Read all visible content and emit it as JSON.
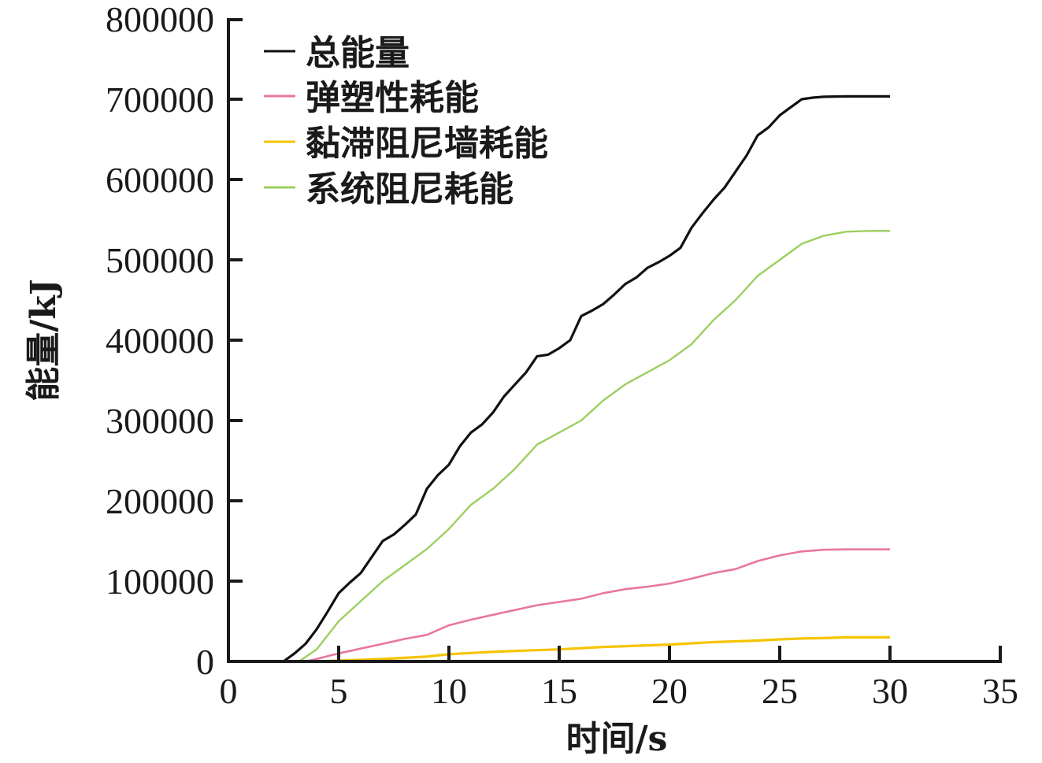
{
  "chart_data": {
    "type": "line",
    "title": "",
    "xlabel": "时间/s",
    "ylabel": "能量/kJ",
    "xlim": [
      0,
      35
    ],
    "ylim": [
      0,
      800000
    ],
    "xticks": [
      0,
      5,
      10,
      15,
      20,
      25,
      30,
      35
    ],
    "yticks": [
      0,
      100000,
      200000,
      300000,
      400000,
      500000,
      600000,
      700000,
      800000
    ],
    "grid": false,
    "legend_position": "upper-left",
    "series": [
      {
        "name": "总能量",
        "color": "#111111",
        "width": 3.2,
        "x": [
          2.5,
          3,
          3.5,
          4,
          4.5,
          5,
          5.5,
          6,
          6.5,
          7,
          7.5,
          8,
          8.5,
          9,
          9.5,
          10,
          10.5,
          11,
          11.5,
          12,
          12.5,
          13,
          13.5,
          14,
          14.5,
          15,
          15.5,
          16,
          16.5,
          17,
          17.5,
          18,
          18.5,
          19,
          19.5,
          20,
          20.5,
          21,
          21.5,
          22,
          22.5,
          23,
          23.5,
          24,
          24.5,
          25,
          25.5,
          26,
          26.5,
          27,
          28,
          29,
          30
        ],
        "values": [
          0,
          10000,
          22000,
          40000,
          62000,
          85000,
          98000,
          110000,
          130000,
          150000,
          158000,
          170000,
          183000,
          215000,
          232000,
          245000,
          268000,
          285000,
          295000,
          310000,
          330000,
          345000,
          360000,
          380000,
          382000,
          390000,
          400000,
          430000,
          437000,
          445000,
          457000,
          470000,
          478000,
          490000,
          497000,
          505000,
          515000,
          540000,
          558000,
          575000,
          590000,
          610000,
          630000,
          655000,
          665000,
          680000,
          690000,
          700000,
          702000,
          703000,
          703500,
          703500,
          703500
        ]
      },
      {
        "name": "弹塑性耗能",
        "color": "#e8779e",
        "width": 2.6,
        "x": [
          3.5,
          4,
          5,
          6,
          7,
          8,
          9,
          10,
          11,
          12,
          13,
          14,
          15,
          16,
          17,
          18,
          19,
          20,
          21,
          22,
          23,
          24,
          25,
          26,
          27,
          28,
          30
        ],
        "values": [
          0,
          3000,
          10000,
          16000,
          22000,
          28000,
          33000,
          45000,
          52000,
          58000,
          64000,
          70000,
          74000,
          78000,
          85000,
          90000,
          93000,
          97000,
          103000,
          110000,
          115000,
          125000,
          132000,
          137000,
          139000,
          139500,
          139500
        ]
      },
      {
        "name": "黏滞阻尼墙耗能",
        "color": "#f5c400",
        "width": 3.2,
        "x": [
          4,
          5,
          6,
          7,
          8,
          9,
          10,
          11,
          12,
          13,
          14,
          15,
          16,
          17,
          18,
          19,
          20,
          21,
          22,
          23,
          24,
          25,
          26,
          27,
          28,
          29,
          30
        ],
        "values": [
          0,
          1000,
          2000,
          3000,
          4500,
          6000,
          9000,
          10500,
          12000,
          13000,
          14000,
          15000,
          16500,
          18000,
          19000,
          20000,
          21000,
          22500,
          24000,
          25000,
          26000,
          27500,
          28500,
          29000,
          30000,
          30000,
          30000
        ]
      },
      {
        "name": "系统阻尼耗能",
        "color": "#9ccf5f",
        "width": 2.4,
        "x": [
          3.2,
          4,
          5,
          6,
          7,
          8,
          9,
          10,
          11,
          12,
          13,
          14,
          15,
          16,
          17,
          18,
          19,
          20,
          21,
          22,
          23,
          24,
          25,
          26,
          27,
          28,
          29,
          30
        ],
        "values": [
          0,
          15000,
          50000,
          75000,
          100000,
          120000,
          140000,
          165000,
          195000,
          215000,
          240000,
          270000,
          285000,
          300000,
          325000,
          345000,
          360000,
          375000,
          395000,
          425000,
          450000,
          480000,
          500000,
          520000,
          530000,
          535000,
          536000,
          536000
        ]
      }
    ]
  },
  "axes": {
    "x_title": "时间/s",
    "y_title": "能量/kJ",
    "x_tick_labels": [
      "0",
      "5",
      "10",
      "15",
      "20",
      "25",
      "30",
      "35"
    ],
    "y_tick_labels": [
      "0",
      "100000",
      "200000",
      "300000",
      "400000",
      "500000",
      "600000",
      "700000",
      "800000"
    ]
  },
  "legend": {
    "items": [
      {
        "label": "总能量",
        "color": "#111111"
      },
      {
        "label": "弹塑性耗能",
        "color": "#e8779e"
      },
      {
        "label": "黏滞阻尼墙耗能",
        "color": "#f5c400"
      },
      {
        "label": "系统阻尼耗能",
        "color": "#9ccf5f"
      }
    ]
  }
}
